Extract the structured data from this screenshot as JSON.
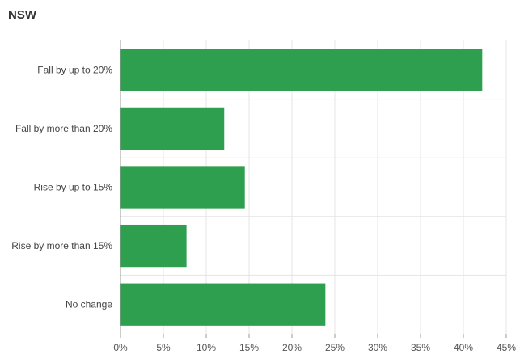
{
  "chart_data": {
    "type": "bar",
    "orientation": "horizontal",
    "title": "NSW",
    "categories": [
      "Fall by up to 20%",
      "Fall by more than 20%",
      "Rise by up to 15%",
      "Rise by more than 15%",
      "No change"
    ],
    "values": [
      42.2,
      12.1,
      14.5,
      7.7,
      23.9
    ],
    "xlim": [
      0,
      45
    ],
    "x_ticks": [
      0,
      5,
      10,
      15,
      20,
      25,
      30,
      35,
      40,
      45
    ],
    "x_tick_labels": [
      "0%",
      "5%",
      "10%",
      "15%",
      "20%",
      "25%",
      "30%",
      "35%",
      "40%",
      "45%"
    ],
    "grid": true,
    "bar_color": "#2e9e4f",
    "xlabel": "",
    "ylabel": ""
  }
}
